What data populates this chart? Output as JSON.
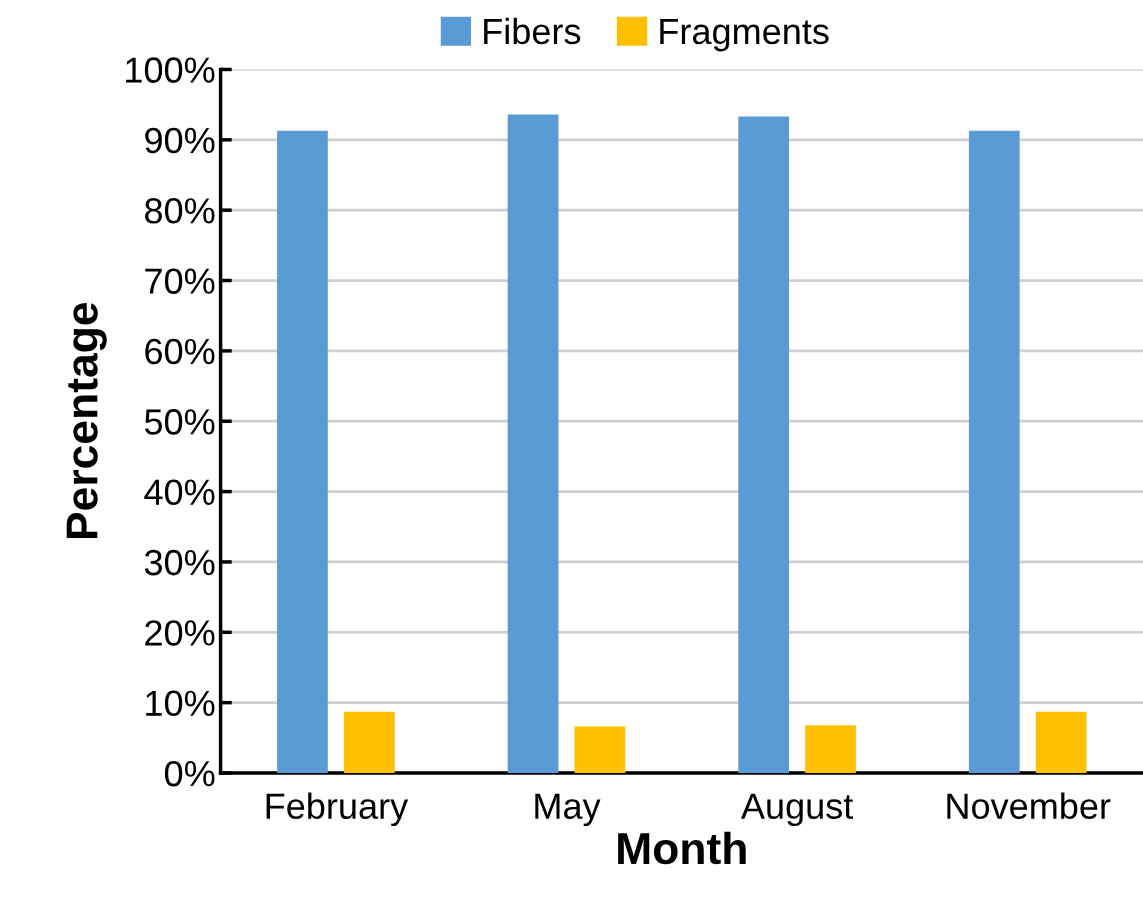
{
  "chart_data": {
    "type": "bar",
    "xlabel": "Month",
    "ylabel": "Percentage",
    "categories": [
      "February",
      "May",
      "August",
      "November"
    ],
    "series": [
      {
        "name": "Fibers",
        "color": "#5b9bd5",
        "values": [
          91.3,
          93.6,
          93.3,
          91.3
        ]
      },
      {
        "name": "Fragments",
        "color": "#ffc000",
        "values": [
          8.7,
          6.6,
          6.8,
          8.7
        ]
      }
    ],
    "ylim": [
      0,
      100
    ],
    "yticks": [
      {
        "value": 0,
        "label": "0%"
      },
      {
        "value": 10,
        "label": "10%"
      },
      {
        "value": 20,
        "label": "20%"
      },
      {
        "value": 30,
        "label": "30%"
      },
      {
        "value": 40,
        "label": "40%"
      },
      {
        "value": 50,
        "label": "50%"
      },
      {
        "value": 60,
        "label": "60%"
      },
      {
        "value": 70,
        "label": "70%"
      },
      {
        "value": 80,
        "label": "80%"
      },
      {
        "value": 90,
        "label": "90%"
      },
      {
        "value": 100,
        "label": "100%"
      }
    ],
    "grid": "y",
    "legend": "top"
  }
}
